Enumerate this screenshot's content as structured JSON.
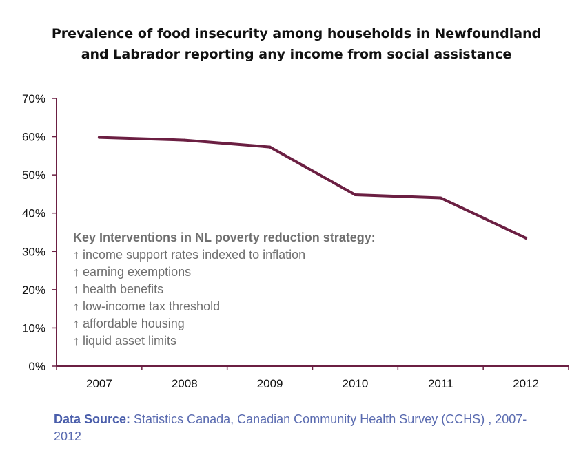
{
  "chart_data": {
    "type": "line",
    "title": "Prevalence of food insecurity among households in Newfoundland and Labrador reporting any income from social assistance",
    "xlabel": "",
    "ylabel": "",
    "categories": [
      "2007",
      "2008",
      "2009",
      "2010",
      "2011",
      "2012"
    ],
    "series": [
      {
        "values": [
          59.8,
          59.1,
          57.3,
          44.8,
          44.0,
          33.5
        ]
      }
    ],
    "ylim": [
      0,
      70
    ],
    "yticks": [
      "0%",
      "10%",
      "20%",
      "30%",
      "40%",
      "50%",
      "60%",
      "70%"
    ],
    "line_color": "#6b1f42",
    "grid": false,
    "annotation": {
      "title": "Key Interventions in NL poverty reduction strategy:",
      "items": [
        "↑ income support rates indexed to inflation",
        "↑ earning exemptions",
        "↑ health benefits",
        "↑ low-income tax threshold",
        "↑ affordable housing",
        "↑ liquid asset limits"
      ]
    }
  },
  "source": {
    "label": "Data Source:",
    "text": " Statistics Canada, Canadian Community Health Survey (CCHS) , 2007-2012"
  }
}
